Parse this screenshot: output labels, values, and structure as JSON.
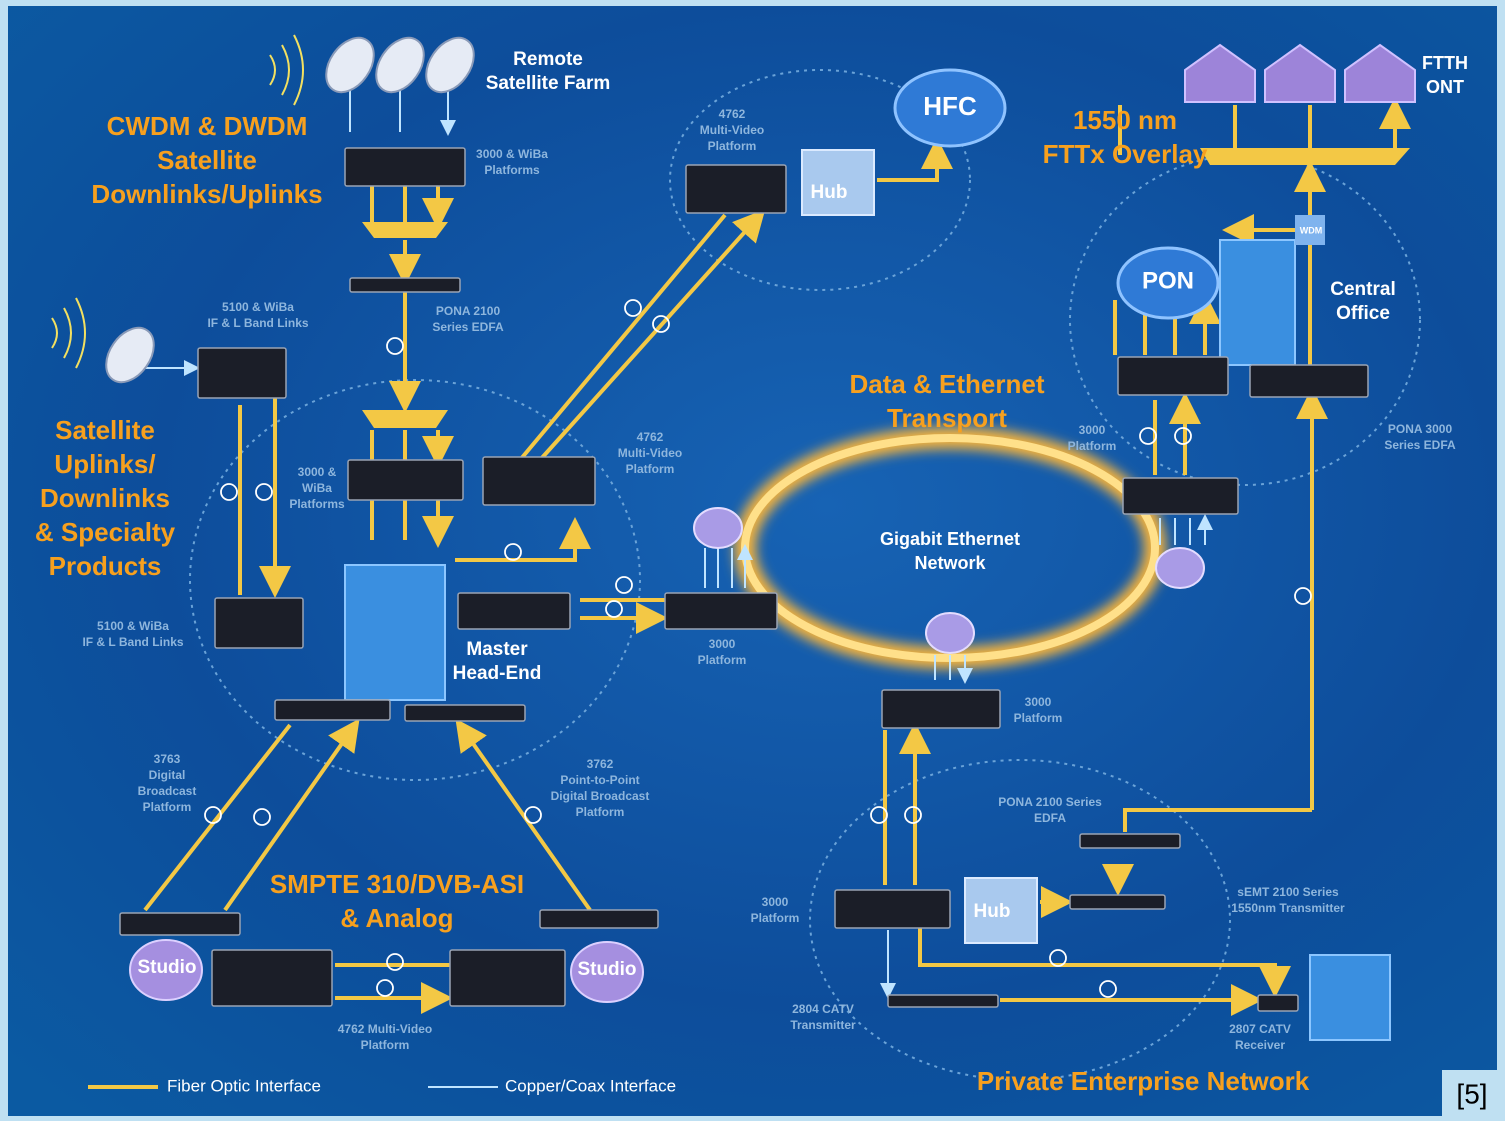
{
  "headings": [
    [
      "CWDM & DWDM",
      "Satellite",
      "Downlinks/Uplinks"
    ],
    [
      "Satellite",
      "Uplinks/",
      "Downlinks",
      "& Specialty",
      "Products"
    ],
    [
      "SMPTE 310/DVB-ASI",
      "& Analog"
    ],
    [
      "Data & Ethernet",
      "Transport"
    ],
    [
      "1550 nm",
      "FTTx Overlay"
    ],
    [
      "Private Enterprise Network"
    ]
  ],
  "names": [
    [
      "Remote",
      "Satellite Farm"
    ],
    [
      "HFC"
    ],
    [
      "Hub"
    ],
    [
      "Hub"
    ],
    [
      "PON"
    ],
    [
      "Central",
      "Office"
    ],
    [
      "FTTH",
      "ONT"
    ],
    [
      "Master",
      "Head-End"
    ],
    [
      "Gigabit Ethernet",
      "Network"
    ],
    [
      "Studio"
    ],
    [
      "Studio"
    ],
    [
      "WDM"
    ]
  ],
  "devices": [
    [
      "3000 & WiBa",
      "Platforms"
    ],
    [
      "PONA 2100",
      "Series EDFA"
    ],
    [
      "5100 & WiBa",
      "IF & L Band Links"
    ],
    [
      "4762",
      "Multi-Video",
      "Platform"
    ],
    [
      "4762",
      "Multi-Video",
      "Platform"
    ],
    [
      "3000 &",
      "WiBa",
      "Platforms"
    ],
    [
      "5100 & WiBa",
      "IF & L Band Links"
    ],
    [
      "3000",
      "Platform"
    ],
    [
      "3000",
      "Platform"
    ],
    [
      "PONA 3000",
      "Series EDFA"
    ],
    [
      "3000",
      "Platform"
    ],
    [
      "3763",
      "Digital",
      "Broadcast",
      "Platform"
    ],
    [
      "3762",
      "Point-to-Point",
      "Digital Broadcast",
      "Platform"
    ],
    [
      "4762 Multi-Video",
      "Platform"
    ],
    [
      "PONA 2100 Series",
      "EDFA"
    ],
    [
      "sEMT 2100 Series",
      "1550nm Transmitter"
    ],
    [
      "3000",
      "Platform"
    ],
    [
      "2804 CATV",
      "Transmitter"
    ],
    [
      "2807 CATV",
      "Receiver"
    ]
  ],
  "legend": {
    "fiber": "Fiber Optic Interface",
    "copper": "Copper/Coax Interface"
  },
  "footnote": "[5]"
}
